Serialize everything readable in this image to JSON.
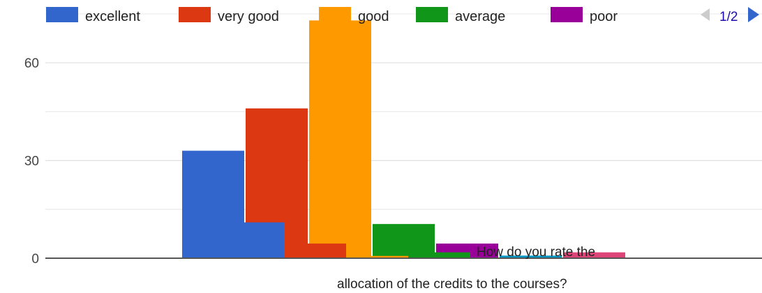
{
  "colors": {
    "grid": "#e0e0e0",
    "baseline": "#555555",
    "pager_disabled": "#cccccc",
    "pager_active": "#3366cc"
  },
  "legend": {
    "items": [
      {
        "label": "excellent",
        "color": "#3366cc"
      },
      {
        "label": "very good",
        "color": "#dc3912"
      },
      {
        "label": "good",
        "color": "#ff9900"
      },
      {
        "label": "average",
        "color": "#109618"
      },
      {
        "label": "poor",
        "color": "#990099"
      }
    ],
    "pager": {
      "text": "1/2",
      "prev_icon": "triangle-left-icon",
      "next_icon": "triangle-right-icon"
    }
  },
  "chart_data": {
    "type": "bar",
    "title": "",
    "xlabel": "",
    "ylabel": "",
    "category_label_lines": [
      "How do you rate the",
      "allocation of the credits to the courses?"
    ],
    "ylim": [
      0,
      75
    ],
    "yticks": [
      0,
      30,
      60
    ],
    "grid": true,
    "legend_position": "top",
    "categories": [
      "",
      "How do you rate the allocation of the credits to the courses?"
    ],
    "series": [
      {
        "name": "excellent",
        "color": "#3366cc",
        "values": [
          33,
          11
        ]
      },
      {
        "name": "very good",
        "color": "#dc3912",
        "values": [
          46,
          4.5
        ]
      },
      {
        "name": "good",
        "color": "#ff9900",
        "values": [
          73,
          0.7
        ]
      },
      {
        "name": "average",
        "color": "#109618",
        "values": [
          10.5,
          1.8
        ]
      },
      {
        "name": "poor",
        "color": "#990099",
        "values": [
          4.5,
          0
        ]
      },
      {
        "color": "#0099c6",
        "values": [
          0.8,
          0
        ]
      },
      {
        "color": "#dd4477",
        "values": [
          1.8,
          0
        ]
      }
    ]
  }
}
